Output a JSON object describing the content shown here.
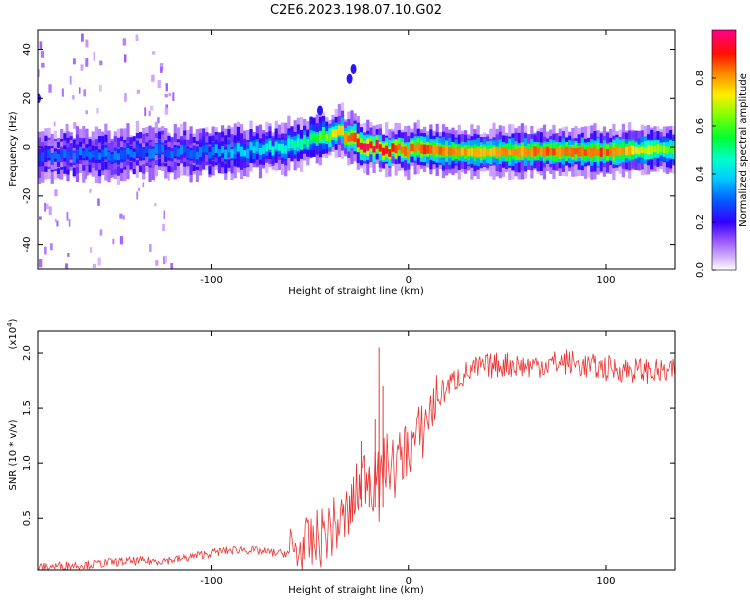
{
  "figure_title": "C2E6.2023.198.07.10.G02",
  "chart_data": [
    {
      "type": "heatmap",
      "xlabel": "Height of straight line (km)",
      "ylabel": "Frequency (Hz)",
      "xlim": [
        -188,
        135
      ],
      "ylim": [
        -50,
        48
      ],
      "xticks": [
        -100,
        0,
        100
      ],
      "yticks": [
        -40,
        -20,
        0,
        20,
        40
      ],
      "grid": false,
      "colorbar": {
        "label": "Normalized spectral amplitude",
        "range": [
          0,
          1
        ],
        "ticks": [
          0.0,
          0.2,
          0.4,
          0.6,
          0.8
        ],
        "colormap": [
          "#ffffff",
          "#d4b3ff",
          "#9b59ff",
          "#5500ff",
          "#0033ff",
          "#00bfff",
          "#00ffcc",
          "#00ff66",
          "#33ff00",
          "#ccff00",
          "#ffcc00",
          "#ff6600",
          "#ff0000",
          "#ff0080"
        ]
      },
      "ridge": {
        "x": [
          -188,
          -170,
          -150,
          -130,
          -110,
          -95,
          -80,
          -65,
          -55,
          -45,
          -38,
          -32,
          -28,
          -25,
          -20,
          -10,
          0,
          10,
          20,
          50,
          80,
          100,
          120,
          135
        ],
        "y": [
          -4,
          -3,
          -3,
          -2,
          -2,
          -2,
          -1,
          0,
          2,
          4,
          6,
          5,
          3,
          1,
          0,
          -1,
          -1,
          -1,
          -2,
          -2,
          -2,
          -2,
          -1,
          -1
        ],
        "amplitude": [
          0.25,
          0.3,
          0.3,
          0.3,
          0.3,
          0.35,
          0.4,
          0.45,
          0.5,
          0.6,
          0.7,
          0.85,
          0.9,
          0.95,
          0.95,
          0.9,
          0.85,
          0.85,
          0.8,
          0.8,
          0.85,
          0.85,
          0.7,
          0.6
        ]
      },
      "off_band_features": {
        "x": [
          -45,
          -30,
          -28,
          -188
        ],
        "y": [
          15,
          28,
          32,
          20
        ]
      }
    },
    {
      "type": "line",
      "xlabel": "Height of straight line (km)",
      "ylabel": "SNR (10 * v/v)",
      "y_multiplier_label": "(x10",
      "y_multiplier_exp": "4",
      "y_multiplier_close": ")",
      "xlim": [
        -188,
        135
      ],
      "ylim": [
        0.03,
        2.2
      ],
      "xticks": [
        -100,
        0,
        100
      ],
      "yticks": [
        0.5,
        1.0,
        1.5,
        2.0
      ],
      "ytick_labels": [
        "0.5",
        "1.0",
        "1.5",
        "2.0"
      ],
      "grid": false,
      "color": "#ee3333",
      "series": [
        {
          "x": [
            -188,
            -175,
            -160,
            -150,
            -140,
            -130,
            -115,
            -105,
            -95,
            -85,
            -75,
            -65,
            -55,
            -50,
            -45,
            -40,
            -35,
            -30,
            -27,
            -24,
            -22,
            -20,
            -18,
            -16,
            -15,
            -13,
            -10,
            -7,
            -4,
            -2,
            0,
            3,
            7,
            10,
            15,
            20,
            25,
            30,
            35,
            40,
            50,
            60,
            70,
            80,
            90,
            100,
            110,
            120,
            130,
            135
          ],
          "y": [
            0.05,
            0.07,
            0.08,
            0.1,
            0.11,
            0.11,
            0.13,
            0.17,
            0.2,
            0.22,
            0.2,
            0.18,
            0.2,
            0.25,
            0.32,
            0.4,
            0.45,
            0.55,
            0.7,
            0.85,
            0.9,
            0.95,
            0.8,
            1.1,
            0.6,
            1.0,
            1.0,
            0.95,
            1.05,
            1.1,
            1.15,
            1.2,
            1.3,
            1.45,
            1.6,
            1.7,
            1.78,
            1.82,
            1.86,
            1.88,
            1.9,
            1.88,
            1.9,
            1.92,
            1.88,
            1.86,
            1.85,
            1.84,
            1.82,
            1.83
          ]
        }
      ],
      "spikes": {
        "x": [
          -24,
          -20,
          -17,
          -15,
          -13
        ],
        "y": [
          1.2,
          0.9,
          1.4,
          2.05,
          1.7
        ]
      }
    }
  ]
}
